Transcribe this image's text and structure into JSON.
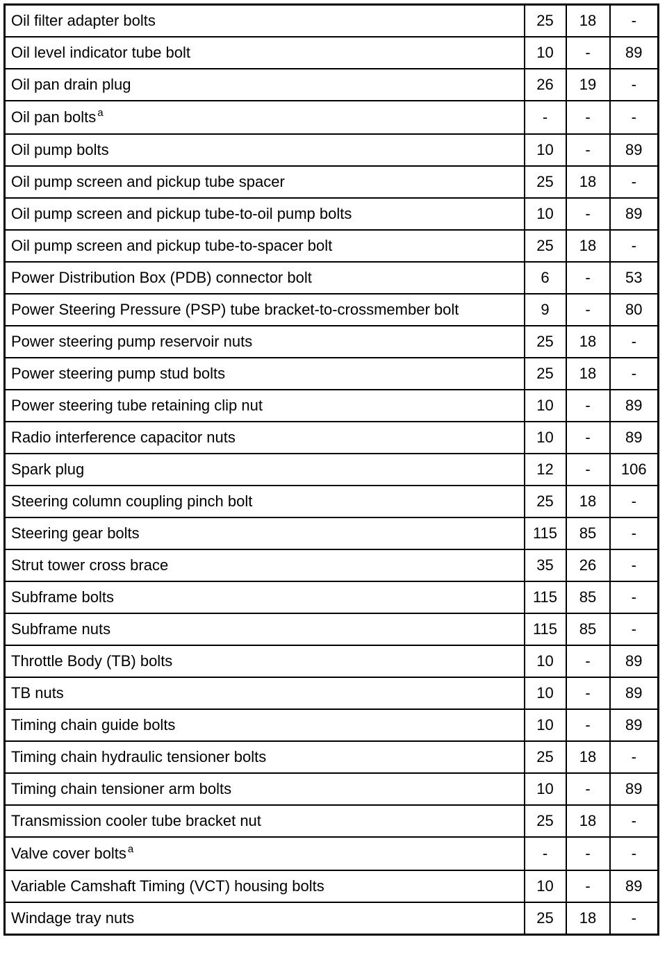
{
  "table": {
    "rows": [
      {
        "item": "Oil filter adapter bolts",
        "nm": "25",
        "lbft": "18",
        "lbin": "-"
      },
      {
        "item": "Oil level indicator tube bolt",
        "nm": "10",
        "lbft": "-",
        "lbin": "89"
      },
      {
        "item": "Oil pan drain plug",
        "nm": "26",
        "lbft": "19",
        "lbin": "-"
      },
      {
        "item": "Oil pan bolts",
        "note": "a",
        "nm": "-",
        "lbft": "-",
        "lbin": "-"
      },
      {
        "item": "Oil pump bolts",
        "nm": "10",
        "lbft": "-",
        "lbin": "89"
      },
      {
        "item": "Oil pump screen and pickup tube spacer",
        "nm": "25",
        "lbft": "18",
        "lbin": "-"
      },
      {
        "item": "Oil pump screen and pickup tube-to-oil pump bolts",
        "nm": "10",
        "lbft": "-",
        "lbin": "89"
      },
      {
        "item": "Oil pump screen and pickup tube-to-spacer bolt",
        "nm": "25",
        "lbft": "18",
        "lbin": "-"
      },
      {
        "item": "Power Distribution Box (PDB) connector bolt",
        "nm": "6",
        "lbft": "-",
        "lbin": "53"
      },
      {
        "item": "Power Steering Pressure (PSP) tube bracket-to-crossmember bolt",
        "nm": "9",
        "lbft": "-",
        "lbin": "80"
      },
      {
        "item": "Power steering pump reservoir nuts",
        "nm": "25",
        "lbft": "18",
        "lbin": "-"
      },
      {
        "item": "Power steering pump stud bolts",
        "nm": "25",
        "lbft": "18",
        "lbin": "-"
      },
      {
        "item": "Power steering tube retaining clip nut",
        "nm": "10",
        "lbft": "-",
        "lbin": "89"
      },
      {
        "item": "Radio interference capacitor nuts",
        "nm": "10",
        "lbft": "-",
        "lbin": "89"
      },
      {
        "item": "Spark plug",
        "nm": "12",
        "lbft": "-",
        "lbin": "106"
      },
      {
        "item": "Steering column coupling pinch bolt",
        "nm": "25",
        "lbft": "18",
        "lbin": "-"
      },
      {
        "item": "Steering gear bolts",
        "nm": "115",
        "lbft": "85",
        "lbin": "-"
      },
      {
        "item": "Strut tower cross brace",
        "nm": "35",
        "lbft": "26",
        "lbin": "-"
      },
      {
        "item": "Subframe bolts",
        "nm": "115",
        "lbft": "85",
        "lbin": "-"
      },
      {
        "item": "Subframe nuts",
        "nm": "115",
        "lbft": "85",
        "lbin": "-"
      },
      {
        "item": "Throttle Body (TB) bolts",
        "nm": "10",
        "lbft": "-",
        "lbin": "89"
      },
      {
        "item": "TB nuts",
        "nm": "10",
        "lbft": "-",
        "lbin": "89"
      },
      {
        "item": "Timing chain guide bolts",
        "nm": "10",
        "lbft": "-",
        "lbin": "89"
      },
      {
        "item": "Timing chain hydraulic tensioner bolts",
        "nm": "25",
        "lbft": "18",
        "lbin": "-"
      },
      {
        "item": "Timing chain tensioner arm bolts",
        "nm": "10",
        "lbft": "-",
        "lbin": "89"
      },
      {
        "item": "Transmission cooler tube bracket nut",
        "nm": "25",
        "lbft": "18",
        "lbin": "-"
      },
      {
        "item": "Valve cover bolts",
        "note": "a",
        "nm": "-",
        "lbft": "-",
        "lbin": "-"
      },
      {
        "item": "Variable Camshaft Timing (VCT) housing bolts",
        "nm": "10",
        "lbft": "-",
        "lbin": "89"
      },
      {
        "item": "Windage tray nuts",
        "nm": "25",
        "lbft": "18",
        "lbin": "-"
      }
    ]
  }
}
